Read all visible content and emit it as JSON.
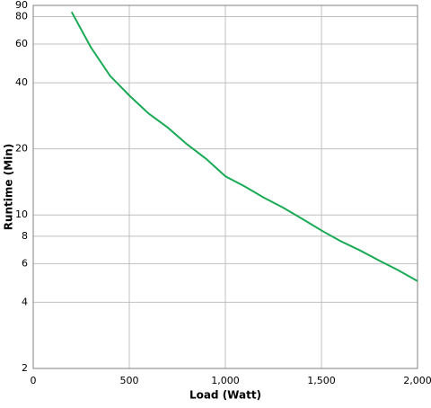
{
  "chart_data": {
    "type": "line",
    "x_label": "Load (Watt)",
    "y_label": "Runtime (Min)",
    "x": [
      200,
      300,
      400,
      500,
      600,
      700,
      800,
      900,
      1000,
      1100,
      1200,
      1300,
      1400,
      1500,
      1600,
      1700,
      1800,
      1900,
      2000
    ],
    "series": [
      {
        "color": "#1aaa55",
        "values": [
          84,
          58,
          43,
          35,
          29,
          25,
          21,
          18,
          15,
          13.5,
          12,
          10.8,
          9.6,
          8.5,
          7.6,
          6.9,
          6.2,
          5.6,
          5.0
        ]
      }
    ],
    "xlim": [
      0,
      2000
    ],
    "xticks": [
      0,
      500,
      {
        "value": 1000,
        "label": "1,000"
      },
      {
        "value": 1500,
        "label": "1,500"
      },
      {
        "value": 2000,
        "label": "2,000"
      }
    ],
    "ylim": [
      2,
      90
    ],
    "ylog": true,
    "yticks": [
      2,
      4,
      6,
      8,
      10,
      20,
      40,
      60,
      80,
      90
    ],
    "grid": true
  }
}
